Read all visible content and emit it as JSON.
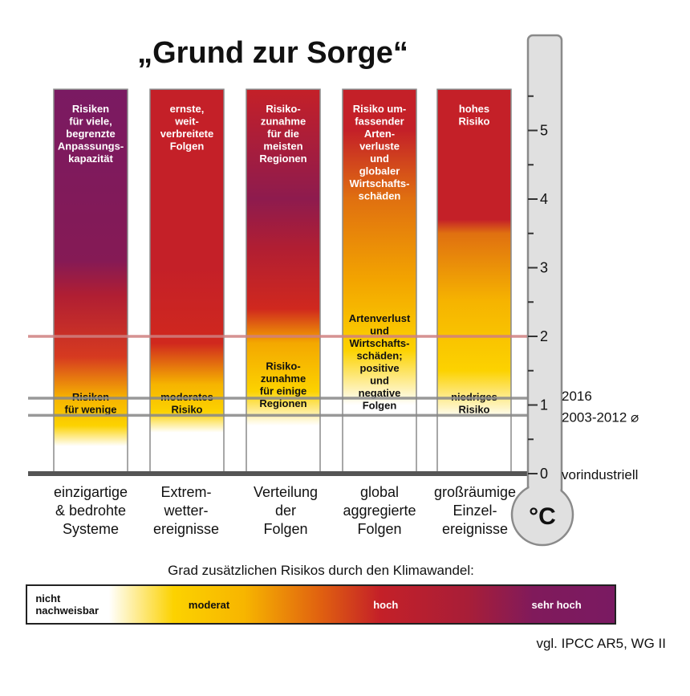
{
  "chart_data": {
    "type": "bar",
    "title": "„Grund zur Sorge“",
    "unit_label": "°C",
    "y_axis": {
      "ylim": [
        0,
        5.5
      ],
      "ticks": [
        "0",
        "1",
        "2",
        "3",
        "4",
        "5"
      ],
      "zero_label": "vorindustriell"
    },
    "reference_lines": [
      {
        "value": 0.85,
        "label": "2003-2012 ⌀",
        "color": "#888888"
      },
      {
        "value": 1.1,
        "label": "2016",
        "color": "#888888"
      },
      {
        "value": 2.0,
        "label": "",
        "color": "#d08080"
      }
    ],
    "categories": [
      {
        "label": [
          "einzigartige",
          "& bedrohte",
          "Systeme"
        ]
      },
      {
        "label": [
          "Extrem-",
          "wetter-",
          "ereignisse"
        ]
      },
      {
        "label": [
          "Verteilung",
          "der",
          "Folgen"
        ]
      },
      {
        "label": [
          "global",
          "aggregierte",
          "Folgen"
        ]
      },
      {
        "label": [
          "großräumige",
          "Einzel-",
          "ereignisse"
        ]
      }
    ],
    "bars": [
      {
        "top": 5.6,
        "stops": [
          {
            "t": 0.4,
            "color": "#ffffff"
          },
          {
            "t": 0.7,
            "color": "#fcd200"
          },
          {
            "t": 1.1,
            "color": "#f6b400"
          },
          {
            "t": 1.7,
            "color": "#d63a20"
          },
          {
            "t": 2.6,
            "color": "#b01e33"
          },
          {
            "t": 3.1,
            "color": "#851a55"
          },
          {
            "t": 5.6,
            "color": "#7a1a62"
          }
        ],
        "labels": [
          {
            "y": 5.38,
            "lines": [
              "Risiken",
              "für viele,",
              "begrenzte",
              "Anpassungs-",
              "kapazität"
            ],
            "color": "#ffffff"
          },
          {
            "y": 1.18,
            "lines": [
              "Risiken",
              "für wenige"
            ],
            "color": "#111111"
          }
        ]
      },
      {
        "top": 5.6,
        "stops": [
          {
            "t": 0.6,
            "color": "#ffffff"
          },
          {
            "t": 0.9,
            "color": "#fcd200"
          },
          {
            "t": 1.3,
            "color": "#f6b400"
          },
          {
            "t": 1.9,
            "color": "#d0281e"
          },
          {
            "t": 3.0,
            "color": "#c42028"
          },
          {
            "t": 5.6,
            "color": "#c42028"
          }
        ],
        "labels": [
          {
            "y": 5.38,
            "lines": [
              "ernste,",
              "weit-",
              "verbreitete",
              "Folgen"
            ],
            "color": "#ffffff"
          },
          {
            "y": 1.18,
            "lines": [
              "moderates",
              "Risiko"
            ],
            "color": "#111111"
          }
        ]
      },
      {
        "top": 5.6,
        "stops": [
          {
            "t": 0.7,
            "color": "#ffffff"
          },
          {
            "t": 1.2,
            "color": "#fcd200"
          },
          {
            "t": 1.9,
            "color": "#f4a800"
          },
          {
            "t": 2.4,
            "color": "#d0281e"
          },
          {
            "t": 3.3,
            "color": "#b01e33"
          },
          {
            "t": 4.0,
            "color": "#8e1b4e"
          },
          {
            "t": 5.6,
            "color": "#c42028"
          }
        ],
        "labels": [
          {
            "y": 5.38,
            "lines": [
              "Risiko-",
              "zunahme",
              "für die",
              "meisten",
              "Regionen"
            ],
            "color": "#ffffff"
          },
          {
            "y": 1.63,
            "lines": [
              "Risiko-",
              "zunahme",
              "für einige",
              "Regionen"
            ],
            "color": "#111111"
          }
        ]
      },
      {
        "top": 5.6,
        "stops": [
          {
            "t": 1.0,
            "color": "#ffffff"
          },
          {
            "t": 1.8,
            "color": "#fcd200"
          },
          {
            "t": 2.8,
            "color": "#f3a500"
          },
          {
            "t": 4.0,
            "color": "#e07010"
          },
          {
            "t": 5.0,
            "color": "#c42028"
          },
          {
            "t": 5.6,
            "color": "#c42028"
          }
        ],
        "labels": [
          {
            "y": 5.38,
            "lines": [
              "Risiko um-",
              "fassender",
              "Arten-",
              "verluste",
              "und",
              "globaler",
              "Wirtschafts-",
              "schäden"
            ],
            "color": "#ffffff"
          },
          {
            "y": 2.33,
            "lines": [
              "Artenverlust",
              "und",
              "Wirtschafts-",
              "schäden;",
              "positive",
              "und",
              "negative",
              "Folgen"
            ],
            "color": "#111111"
          }
        ]
      },
      {
        "top": 5.6,
        "stops": [
          {
            "t": 0.8,
            "color": "#ffffff"
          },
          {
            "t": 1.5,
            "color": "#fcd200"
          },
          {
            "t": 2.5,
            "color": "#f6b400"
          },
          {
            "t": 3.5,
            "color": "#e07010"
          },
          {
            "t": 3.7,
            "color": "#c42028"
          },
          {
            "t": 5.6,
            "color": "#c42028"
          }
        ],
        "labels": [
          {
            "y": 5.38,
            "lines": [
              "hohes",
              "Risiko"
            ],
            "color": "#ffffff"
          },
          {
            "y": 1.18,
            "lines": [
              "niedriges",
              "Risiko"
            ],
            "color": "#111111"
          }
        ]
      }
    ],
    "legend": {
      "title": "Grad zusätzlichen Risikos durch den Klimawandel:",
      "items": [
        {
          "lines": [
            "nicht",
            "nachweisbar"
          ],
          "pos": 0.01,
          "color": "#111111",
          "anchor": "start"
        },
        {
          "lines": [
            "moderat"
          ],
          "pos": 0.31,
          "color": "#111111",
          "anchor": "middle"
        },
        {
          "lines": [
            "hoch"
          ],
          "pos": 0.61,
          "color": "#ffffff",
          "anchor": "middle"
        },
        {
          "lines": [
            "sehr hoch"
          ],
          "pos": 0.9,
          "color": "#ffffff",
          "anchor": "middle"
        }
      ],
      "stops": [
        {
          "pos": 0.14,
          "color": "#ffffff"
        },
        {
          "pos": 0.25,
          "color": "#fcd200"
        },
        {
          "pos": 0.37,
          "color": "#f7b500"
        },
        {
          "pos": 0.5,
          "color": "#e06010"
        },
        {
          "pos": 0.6,
          "color": "#c42028"
        },
        {
          "pos": 0.75,
          "color": "#a81e38"
        },
        {
          "pos": 0.86,
          "color": "#801a5b"
        },
        {
          "pos": 1.0,
          "color": "#7a1a62"
        }
      ]
    },
    "source": "vgl. IPCC AR5, WG II"
  }
}
